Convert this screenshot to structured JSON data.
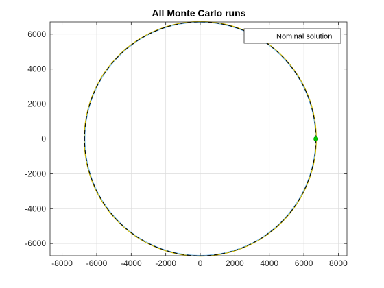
{
  "chart_data": {
    "type": "line",
    "title": "All Monte Carlo runs",
    "xlabel": "",
    "ylabel": "",
    "xlim": [
      -8700,
      8500
    ],
    "ylim": [
      -6700,
      6700
    ],
    "x_ticks": [
      -8000,
      -6000,
      -4000,
      -2000,
      0,
      2000,
      4000,
      6000,
      8000
    ],
    "x_tick_labels": [
      "-8000",
      "-6000",
      "-4000",
      "-2000",
      "0",
      "2000",
      "4000",
      "6000",
      "8000"
    ],
    "y_ticks": [
      -6000,
      -4000,
      -2000,
      0,
      2000,
      4000,
      6000
    ],
    "y_tick_labels": [
      "-6000",
      "-4000",
      "-2000",
      "0",
      "2000",
      "4000",
      "6000"
    ],
    "grid": true,
    "legend_placement": "top-right",
    "series": [
      {
        "name": "Nominal solution",
        "style": "dashed",
        "color": "#000000",
        "shape": "circle",
        "center": [
          0,
          0
        ],
        "radius": 6700
      }
    ],
    "monte_carlo_color": "#c8b400",
    "markers": [
      {
        "x": 6700,
        "y": 0,
        "color": "#00cc00"
      }
    ]
  }
}
